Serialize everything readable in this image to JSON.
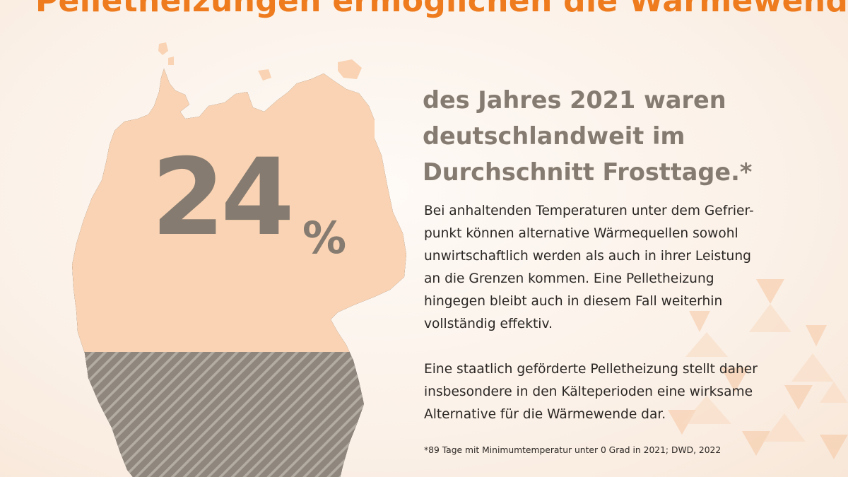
{
  "headline": "Pelletheizungen ermöglichen die Wärmewende!",
  "stat": {
    "value": "24",
    "unit": "%",
    "fraction": 0.24
  },
  "lead": {
    "lines": [
      "des Jahres 2021 waren",
      "deutschlandweit im",
      "Durchschnitt Frosttage.*"
    ]
  },
  "paragraph1": {
    "lines": [
      "Bei anhaltenden Temperaturen unter dem Gefrier-",
      "punkt können alternative Wärmequellen sowohl",
      "unwirtschaftlich werden als auch in ihrer Leistung",
      "an die Grenzen kommen. Eine Pelletheizung",
      "hingegen bleibt auch in diesem Fall weiterhin",
      "vollständig effektiv."
    ]
  },
  "paragraph2": {
    "lines": [
      "Eine staatlich geförderte Pelletheizung stellt daher",
      "insbesondere in den Kälteperioden eine wirksame",
      "Alternative für die Wärmewende dar."
    ]
  },
  "footnote": "*89 Tage mit Minimumtemperatur unter 0 Grad in 2021; DWD, 2022",
  "colors": {
    "accent": "#ee7b1e",
    "map_fill": "#f9d3b3",
    "hatch": "#8f877d",
    "stat_text": "#857b70",
    "body_text": "#2b2724"
  }
}
